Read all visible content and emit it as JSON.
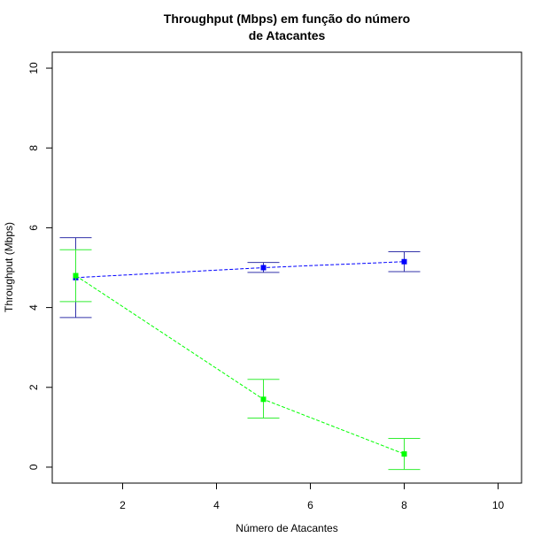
{
  "chart_data": {
    "type": "line",
    "title": [
      "Throughput (Mbps) em função do número",
      "de Atacantes"
    ],
    "xlabel": "Número de Atacantes",
    "ylabel": "Throughput (Mbps)",
    "xlim": [
      0.5,
      10.5
    ],
    "ylim": [
      -0.4,
      10.4
    ],
    "xticks": [
      2,
      4,
      6,
      8,
      10
    ],
    "yticks": [
      0,
      2,
      4,
      6,
      8,
      10
    ],
    "xtick_labels": [
      "2",
      "4",
      "6",
      "8",
      "10"
    ],
    "ytick_labels": [
      "0",
      "2",
      "4",
      "6",
      "8",
      "10"
    ],
    "grid": false,
    "series": [
      {
        "color": "#0000ff",
        "error_color": "#3333aa",
        "line_style": "dashed",
        "marker": "square",
        "x": [
          1,
          5,
          8
        ],
        "y": [
          4.75,
          5.0,
          5.15
        ],
        "err_low": [
          3.75,
          4.88,
          4.9
        ],
        "err_high": [
          5.75,
          5.13,
          5.4
        ]
      },
      {
        "color": "#00ff00",
        "error_color": "#33ee33",
        "line_style": "dashed",
        "marker": "square",
        "x": [
          1,
          5,
          8
        ],
        "y": [
          4.8,
          1.7,
          0.33
        ],
        "err_low": [
          4.15,
          1.23,
          -0.06
        ],
        "err_high": [
          5.45,
          2.2,
          0.72
        ]
      }
    ]
  }
}
